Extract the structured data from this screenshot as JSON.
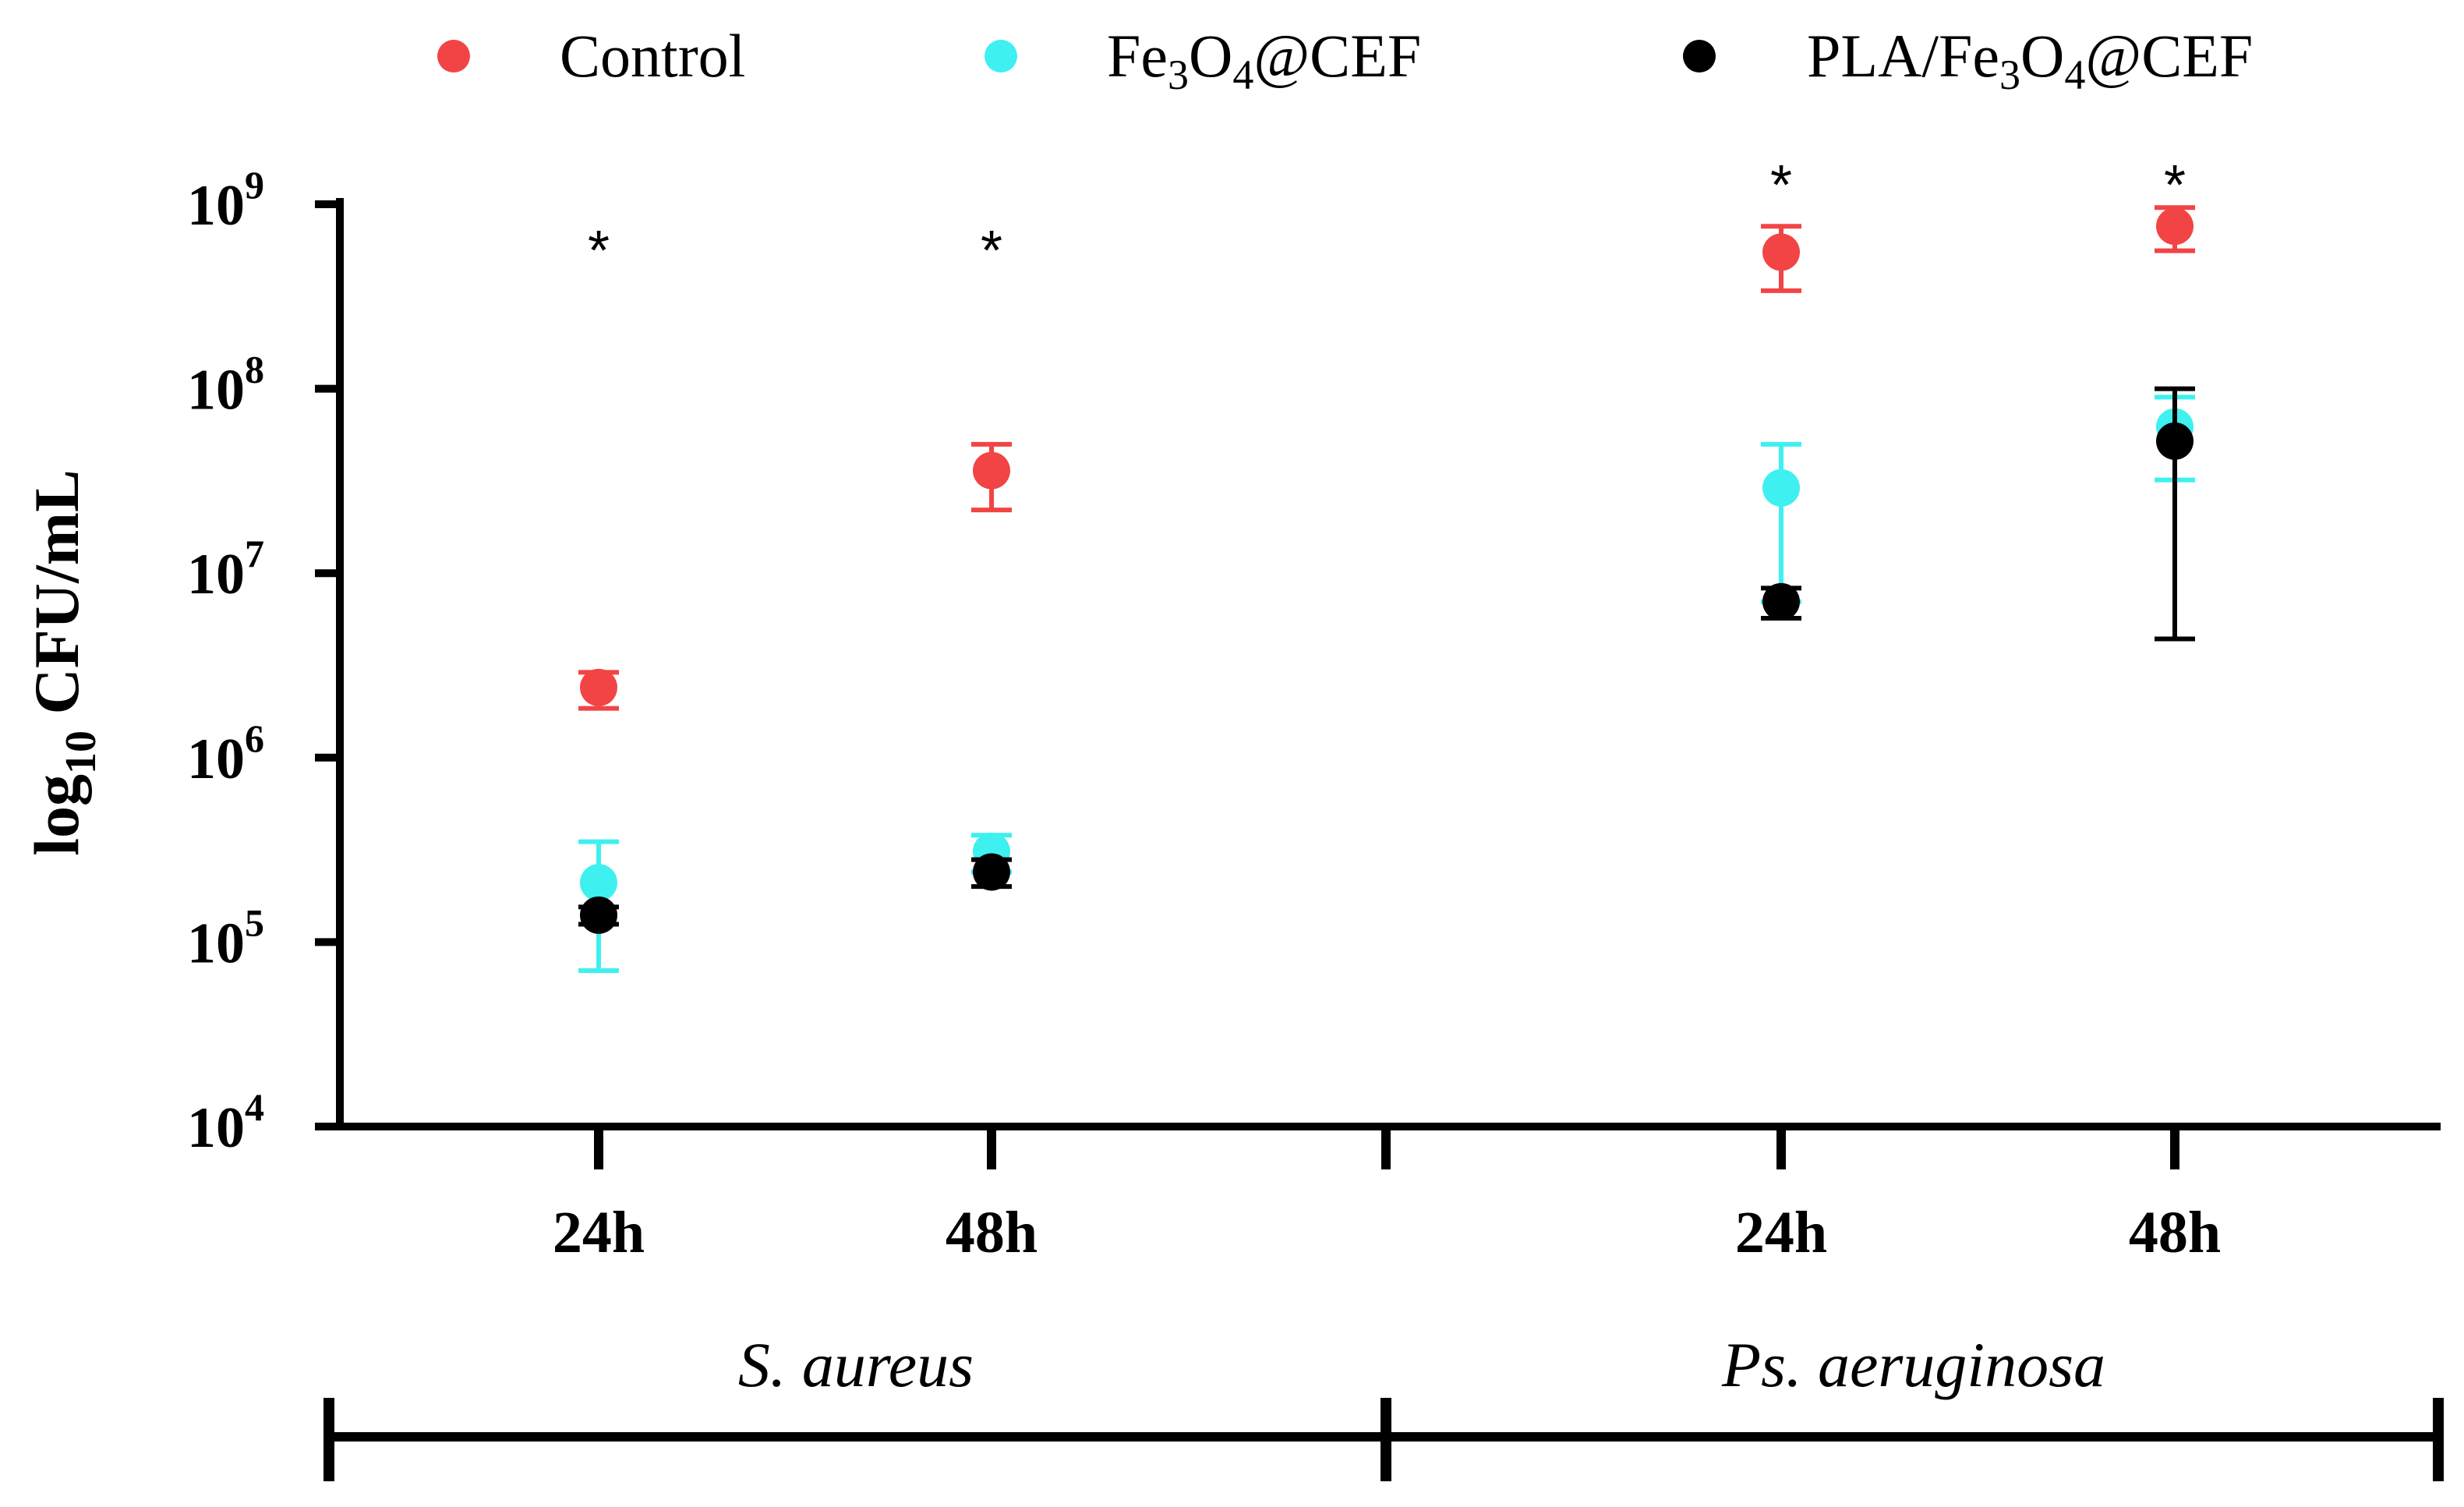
{
  "chart_data": {
    "type": "scatter",
    "yscale": "log",
    "ylim": [
      10000,
      1000000000
    ],
    "ylabel": {
      "base": "log",
      "subscript": "10",
      "rest": " CFU/mL"
    },
    "yticks": [
      {
        "value": 10000,
        "base": "10",
        "exp": "4"
      },
      {
        "value": 100000,
        "base": "10",
        "exp": "5"
      },
      {
        "value": 1000000,
        "base": "10",
        "exp": "6"
      },
      {
        "value": 10000000,
        "base": "10",
        "exp": "7"
      },
      {
        "value": 100000000,
        "base": "10",
        "exp": "8"
      },
      {
        "value": 1000000000,
        "base": "10",
        "exp": "9"
      }
    ],
    "categories": [
      "24h",
      "48h",
      "24h",
      "48h"
    ],
    "groups": [
      "S. aureus",
      "Ps. aeruginosa"
    ],
    "series": [
      {
        "name": "Control",
        "legend": {
          "parts": [
            {
              "t": "Control",
              "sub": false
            }
          ]
        },
        "color": "#f24444",
        "values": [
          2400000,
          36000000,
          550000000,
          760000000
        ],
        "err_low": [
          1850000,
          22000000,
          340000000,
          560000000
        ],
        "err_high": [
          2900000,
          50000000,
          760000000,
          960000000
        ]
      },
      {
        "name": "Fe3O4@CEF",
        "legend": {
          "parts": [
            {
              "t": "Fe",
              "sub": false
            },
            {
              "t": "3",
              "sub": true
            },
            {
              "t": "O",
              "sub": false
            },
            {
              "t": "4",
              "sub": true
            },
            {
              "t": "@CEF",
              "sub": false
            }
          ]
        },
        "color": "#3ff0f0",
        "values": [
          210000,
          310000,
          29000000,
          62000000
        ],
        "err_low": [
          70000,
          240000,
          7000000,
          32000000
        ],
        "err_high": [
          350000,
          380000,
          50000000,
          90000000
        ]
      },
      {
        "name": "PLA/Fe3O4@CEF",
        "legend": {
          "parts": [
            {
              "t": "PLA/Fe",
              "sub": false
            },
            {
              "t": "3",
              "sub": true
            },
            {
              "t": "O",
              "sub": false
            },
            {
              "t": "4",
              "sub": true
            },
            {
              "t": "@CEF",
              "sub": false
            }
          ]
        },
        "color": "#000000",
        "values": [
          140000,
          240000,
          7000000,
          52000000
        ],
        "err_low": [
          125000,
          200000,
          5700000,
          4400000
        ],
        "err_high": [
          155000,
          280000,
          8300000,
          100000000
        ]
      }
    ],
    "significance": {
      "symbol": "*",
      "values": [
        750000000,
        750000000,
        1350000000,
        1350000000
      ]
    }
  }
}
